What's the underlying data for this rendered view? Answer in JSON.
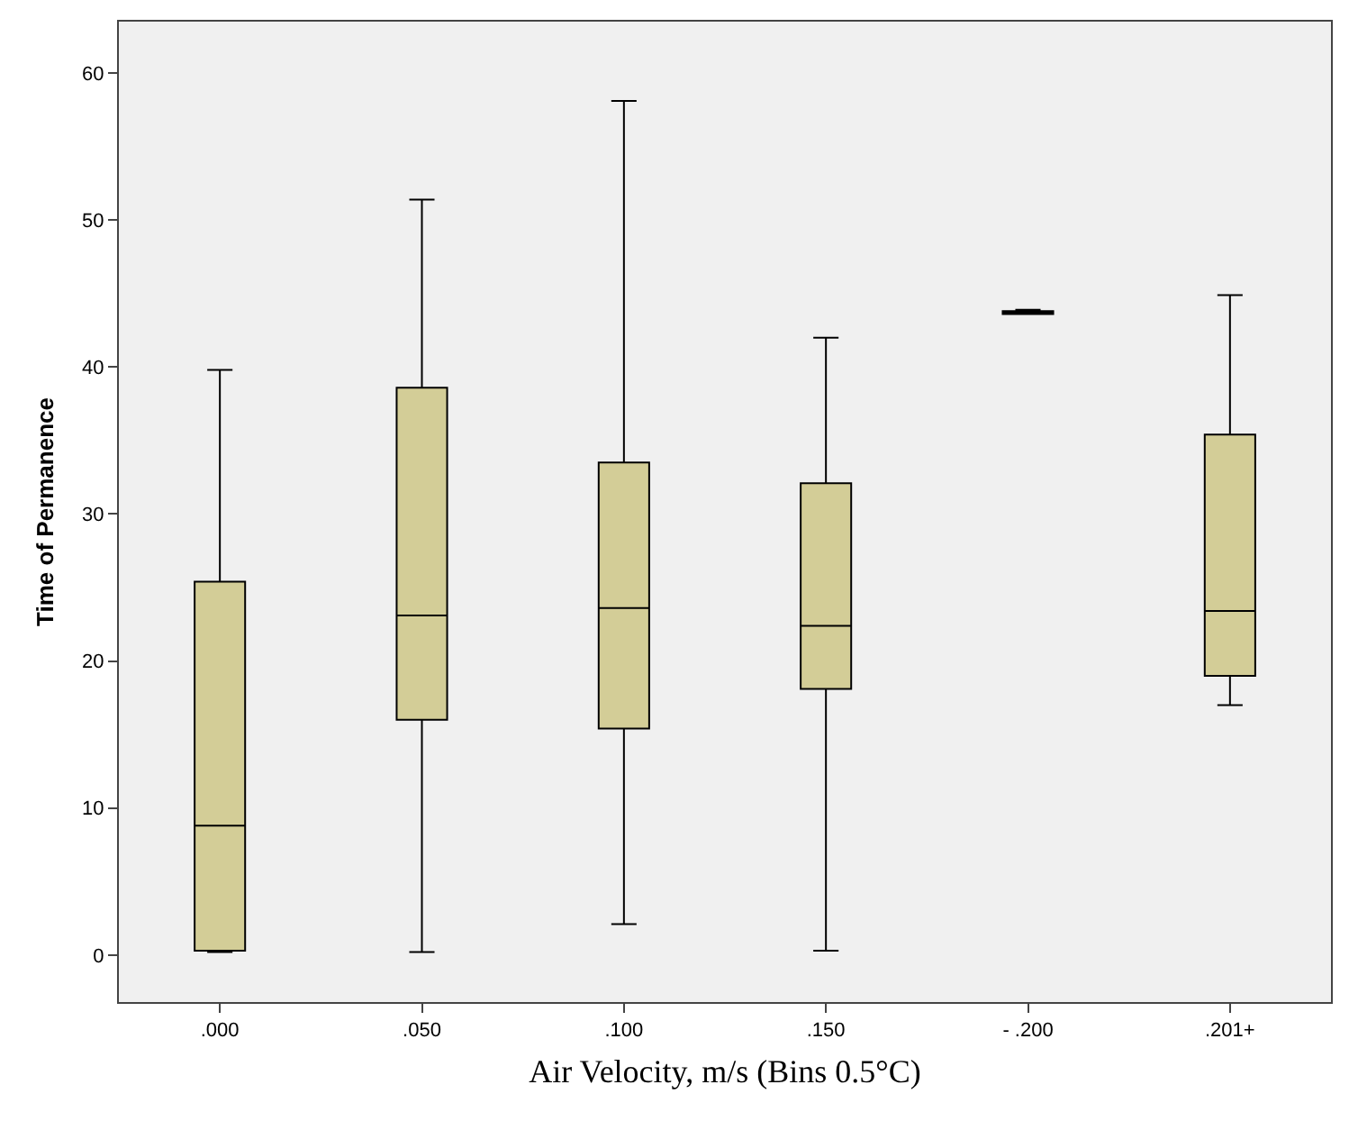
{
  "chart_data": {
    "type": "box",
    "xlabel": "Air Velocity, m/s (Bins 0.5°C)",
    "ylabel": "Time of Permanence",
    "categories": [
      ".000",
      ".050",
      ".100",
      ".150",
      "- .200",
      ".201+"
    ],
    "boxes": [
      {
        "low": 0.2,
        "q1": 0.3,
        "median": 8.8,
        "q3": 25.4,
        "high": 39.8
      },
      {
        "low": 0.2,
        "q1": 16.0,
        "median": 23.1,
        "q3": 38.6,
        "high": 51.4
      },
      {
        "low": 2.1,
        "q1": 15.4,
        "median": 23.6,
        "q3": 33.5,
        "high": 58.1
      },
      {
        "low": 0.3,
        "q1": 18.1,
        "median": 22.4,
        "q3": 32.1,
        "high": 42.0
      },
      {
        "low": 43.6,
        "q1": 43.6,
        "median": 43.7,
        "q3": 43.8,
        "high": 43.9
      },
      {
        "low": 17.0,
        "q1": 19.0,
        "median": 23.4,
        "q3": 35.4,
        "high": 44.9
      }
    ],
    "color": "#d3cd97",
    "ylim": [
      -3.2,
      63.5
    ],
    "yticks": [
      0,
      10,
      20,
      30,
      40,
      50,
      60
    ],
    "grid": false
  }
}
